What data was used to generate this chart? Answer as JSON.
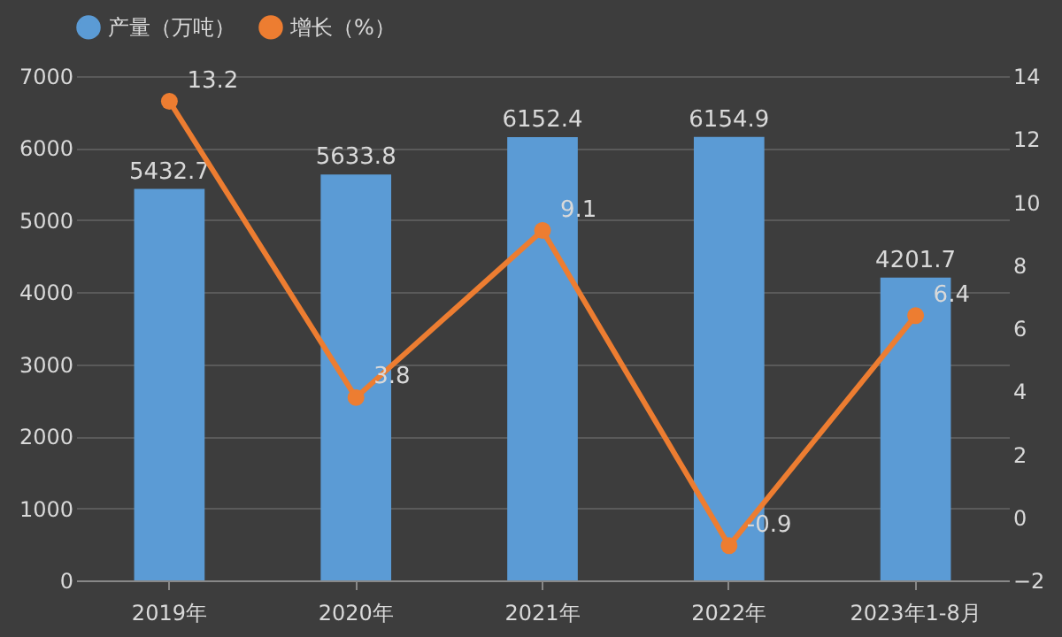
{
  "chart_data": {
    "type": "bar",
    "categories": [
      "2019年",
      "2020年",
      "2021年",
      "2022年",
      "2023年1-8月"
    ],
    "series": [
      {
        "name": "产量（万吨）",
        "color": "#5b9bd5",
        "values": [
          5432.7,
          5633.8,
          6152.4,
          6154.9,
          4201.7
        ]
      },
      {
        "name": "增长（%）",
        "type": "line",
        "axis": "y2",
        "color": "#ed7d31",
        "values": [
          13.2,
          3.8,
          9.1,
          -0.9,
          6.4
        ]
      }
    ],
    "ylim": [
      0,
      7000
    ],
    "yticks": [
      0,
      1000,
      2000,
      3000,
      4000,
      5000,
      6000,
      7000
    ],
    "y2lim": [
      -2,
      14
    ],
    "y2ticks": [
      -2,
      0,
      2,
      4,
      6,
      8,
      10,
      12,
      14
    ],
    "grid": "y",
    "legend": "top",
    "marker": "circle",
    "line_style": "solid",
    "data_labels": true
  }
}
